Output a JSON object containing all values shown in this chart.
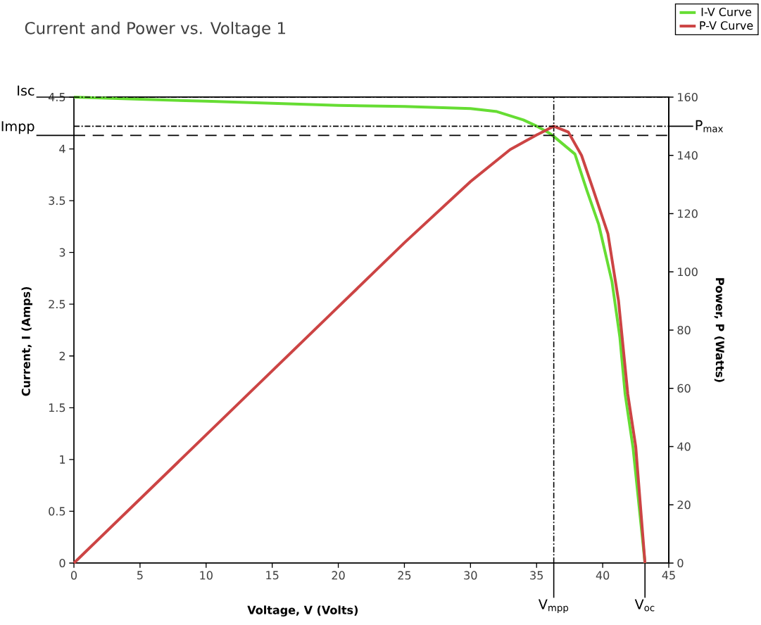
{
  "chart_data": {
    "type": "line",
    "title": "Current and Power vs. Voltage 1",
    "xlabel": "Voltage, V (Volts)",
    "ylabel": "Current, I (Amps)",
    "y2label": "Power, P (Watts)",
    "xlim": [
      0,
      45
    ],
    "xticks": [
      0,
      5,
      10,
      15,
      20,
      25,
      30,
      35,
      40,
      45
    ],
    "ylim": [
      0,
      4.5
    ],
    "yticks": [
      0,
      0.5,
      1,
      1.5,
      2,
      2.5,
      3,
      3.5,
      4,
      4.5
    ],
    "y2lim": [
      0,
      160
    ],
    "y2ticks": [
      0,
      20,
      40,
      60,
      80,
      100,
      120,
      140,
      160
    ],
    "legend": "top right",
    "series": [
      {
        "name": "I-V Curve",
        "color": "#66dd33",
        "x": [
          0,
          5,
          10,
          15,
          20,
          25,
          30,
          32,
          34,
          35,
          36,
          36.3,
          37.9,
          38.8,
          39.7,
          40.7,
          41.3,
          41.7,
          42.3,
          43.2
        ],
        "values": [
          4.5,
          4.48,
          4.46,
          4.44,
          4.42,
          4.41,
          4.39,
          4.36,
          4.28,
          4.22,
          4.15,
          4.12,
          3.95,
          3.6,
          3.27,
          2.72,
          2.18,
          1.63,
          1.11,
          0
        ]
      },
      {
        "name": "P-V Curve",
        "color": "#cc4444",
        "axis": "y2",
        "x": [
          0,
          5,
          10,
          15,
          20,
          25,
          30,
          33,
          35,
          36.3,
          37.4,
          38.4,
          39.3,
          40.4,
          41.2,
          41.9,
          42.5,
          43.2
        ],
        "values": [
          0,
          22,
          44,
          66,
          88,
          110,
          131,
          142,
          147,
          150,
          148,
          140,
          128,
          113,
          90,
          58,
          40,
          0
        ]
      }
    ],
    "ref_lines": [
      {
        "axis": "y",
        "value": 4.5,
        "label": "Isc",
        "line_style": "dashdot"
      },
      {
        "axis": "y",
        "value": 4.13,
        "label": "Impp",
        "line_style": "dashed"
      },
      {
        "axis": "y2",
        "value": 150,
        "label": "P$_{max}$",
        "line_style": "dashdot"
      },
      {
        "axis": "x",
        "value": 36.3,
        "label": "V$_{mpp}$",
        "line_style": "dashdot"
      },
      {
        "axis": "x",
        "value": 43.2,
        "label": "V$_{oc}$",
        "line_style": "solid"
      }
    ]
  }
}
